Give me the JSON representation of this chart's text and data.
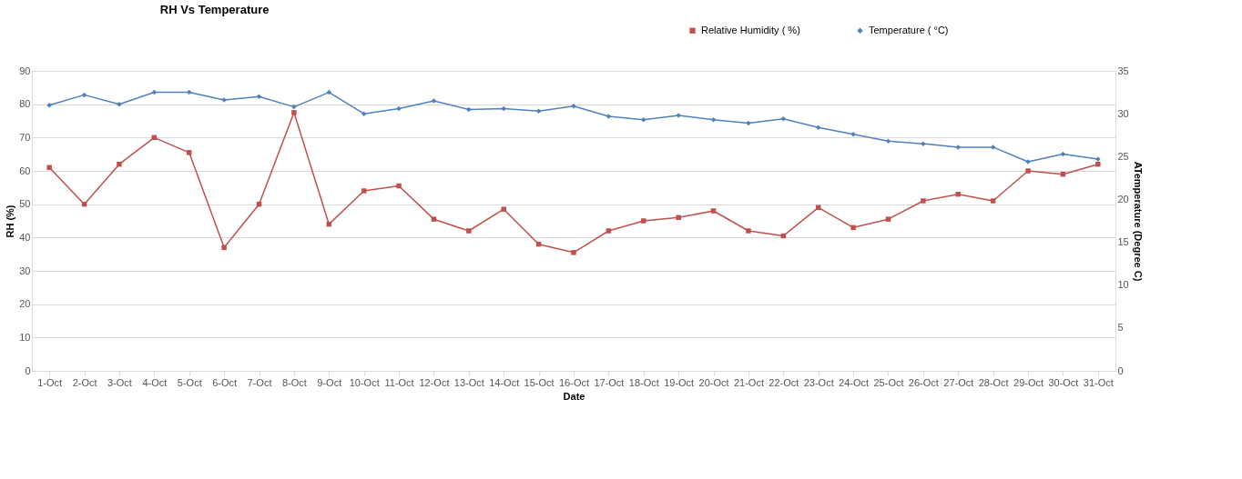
{
  "chart_data": {
    "type": "line",
    "title": "RH Vs Temperature",
    "xlabel": "Date",
    "ylabel": "RH (%)",
    "y2label": "ATemperature (Degree C)",
    "categories": [
      "1-Oct",
      "2-Oct",
      "3-Oct",
      "4-Oct",
      "5-Oct",
      "6-Oct",
      "7-Oct",
      "8-Oct",
      "9-Oct",
      "10-Oct",
      "11-Oct",
      "12-Oct",
      "13-Oct",
      "14-Oct",
      "15-Oct",
      "16-Oct",
      "17-Oct",
      "18-Oct",
      "19-Oct",
      "20-Oct",
      "21-Oct",
      "22-Oct",
      "23-Oct",
      "24-Oct",
      "25-Oct",
      "26-Oct",
      "27-Oct",
      "28-Oct",
      "29-Oct",
      "30-Oct",
      "31-Oct"
    ],
    "series": [
      {
        "name": "Relative Humidity ( %)",
        "color": "#c0504d",
        "marker": "square",
        "values": [
          61,
          50,
          62,
          70,
          65.5,
          37,
          50,
          77.5,
          44,
          54,
          55.5,
          45.5,
          42,
          48.5,
          38,
          35.5,
          42,
          45,
          46,
          48,
          42,
          40.5,
          49,
          43,
          45.5,
          51,
          53,
          51,
          60,
          59,
          62
        ]
      },
      {
        "name": "Temperature ( °C)",
        "color": "#4f81bd",
        "marker": "diamond",
        "axis": "y2",
        "values": [
          31.0,
          32.2,
          31.1,
          32.5,
          32.5,
          31.6,
          32.0,
          30.8,
          32.5,
          30.0,
          30.6,
          31.5,
          30.5,
          30.6,
          30.3,
          30.9,
          29.7,
          29.3,
          29.8,
          29.3,
          28.9,
          29.4,
          28.4,
          27.6,
          26.8,
          26.5,
          26.1,
          26.1,
          24.4,
          25.3,
          24.7
        ]
      }
    ],
    "ylim": [
      0,
      90
    ],
    "yticks": [
      0,
      10,
      20,
      30,
      40,
      50,
      60,
      70,
      80,
      90
    ],
    "y2lim": [
      0,
      35
    ],
    "y2ticks": [
      0,
      5,
      10,
      15,
      20,
      25,
      30,
      35
    ],
    "grid": "y",
    "legend": "top right",
    "line_style": "solid"
  }
}
